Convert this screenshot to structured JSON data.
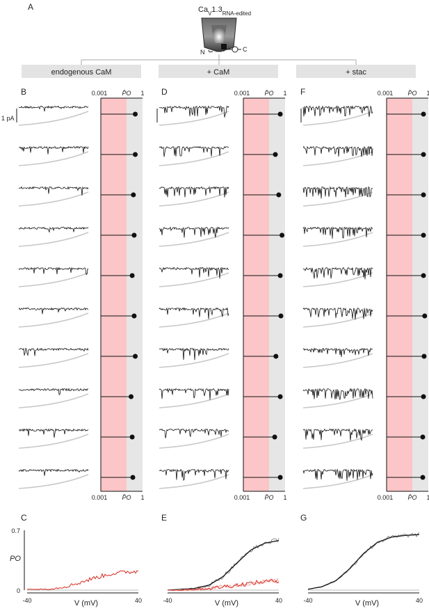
{
  "figure": {
    "panel_letters": {
      "A": "A",
      "B": "B",
      "C": "C",
      "D": "D",
      "E": "E",
      "F": "F",
      "G": "G"
    },
    "channel_title": "CaV1.3",
    "channel_title_base": "Ca",
    "channel_title_sub_v": "V",
    "channel_title_rest": "1.3",
    "channel_title_subscript": "RNA-edited",
    "schematic_labels": {
      "n_term": "N",
      "c_term": "C"
    },
    "conditions": [
      "endogenous CaM",
      "+ CaM",
      "+ stac"
    ],
    "scale_bar_label": "1 pA",
    "colors": {
      "red_band": "#fcc5c7",
      "gray_band": "#e6e6e6",
      "red_trace": "#d62a1f",
      "pink_trace": "#f1a39f",
      "gray_trace": "#8c8c8c",
      "fit_line": "#111111",
      "header_bar": "#e3e3e3"
    }
  },
  "chart_data": [
    {
      "type": "scatter",
      "panel": "B",
      "condition": "endogenous CaM",
      "title": "",
      "xlabel": "P̄O",
      "x_scale": "log",
      "xlim": [
        0.001,
        1
      ],
      "x_ticks": [
        "0.001",
        "1"
      ],
      "n_sweeps": 10,
      "values": [
        0.3,
        0.3,
        0.22,
        0.25,
        0.18,
        0.25,
        0.3,
        0.15,
        0.18,
        0.2
      ]
    },
    {
      "type": "scatter",
      "panel": "D",
      "condition": "+ CaM",
      "title": "",
      "xlabel": "P̄O",
      "x_scale": "log",
      "xlim": [
        0.001,
        1
      ],
      "x_ticks": [
        "0.001",
        "1"
      ],
      "n_sweeps": 10,
      "values": [
        0.45,
        0.2,
        0.35,
        0.6,
        0.45,
        0.5,
        0.22,
        0.45,
        0.18,
        0.45
      ]
    },
    {
      "type": "scatter",
      "panel": "F",
      "condition": "+ stac",
      "title": "",
      "xlabel": "P̄O",
      "x_scale": "log",
      "xlim": [
        0.001,
        1
      ],
      "x_ticks": [
        "0.001",
        "1"
      ],
      "n_sweeps": 10,
      "values": [
        0.45,
        0.45,
        0.45,
        0.45,
        0.45,
        0.55,
        0.5,
        0.45,
        0.4,
        0.4
      ]
    },
    {
      "type": "line",
      "panel": "C",
      "xlabel": "V (mV)",
      "ylabel": "PO",
      "xlim": [
        -40,
        40
      ],
      "ylim": [
        0,
        0.7
      ],
      "x_ticks": [
        "-40",
        "40"
      ],
      "y_ticks": [
        "0",
        "0.7"
      ],
      "series": [
        {
          "color": "red",
          "x": [
            -40,
            -30,
            -20,
            -10,
            0,
            10,
            20,
            30,
            40
          ],
          "values": [
            0.01,
            0.01,
            0.02,
            0.05,
            0.1,
            0.15,
            0.19,
            0.21,
            0.22
          ]
        }
      ]
    },
    {
      "type": "line",
      "panel": "E",
      "xlabel": "V (mV)",
      "ylabel": "",
      "xlim": [
        -40,
        40
      ],
      "ylim": [
        0,
        0.7
      ],
      "x_ticks": [
        "-40",
        "40"
      ],
      "series": [
        {
          "color": "gray",
          "x": [
            -40,
            -30,
            -20,
            -10,
            0,
            10,
            20,
            30,
            40
          ],
          "values": [
            0.0,
            0.01,
            0.02,
            0.06,
            0.16,
            0.32,
            0.47,
            0.55,
            0.59
          ]
        },
        {
          "color": "fit",
          "x": [
            -40,
            -30,
            -20,
            -10,
            0,
            10,
            20,
            30,
            40
          ],
          "values": [
            0.0,
            0.01,
            0.02,
            0.06,
            0.16,
            0.32,
            0.47,
            0.55,
            0.58
          ]
        },
        {
          "color": "pink",
          "x": [
            -40,
            -30,
            -20,
            -10,
            0,
            10,
            20,
            30,
            40
          ],
          "values": [
            0.0,
            0.0,
            0.01,
            0.02,
            0.04,
            0.06,
            0.08,
            0.1,
            0.11
          ]
        },
        {
          "color": "red",
          "x": [
            -40,
            -30,
            -20,
            -10,
            0,
            10,
            20,
            30,
            40
          ],
          "values": [
            0.0,
            0.0,
            0.01,
            0.02,
            0.04,
            0.06,
            0.08,
            0.1,
            0.11
          ]
        }
      ]
    },
    {
      "type": "line",
      "panel": "G",
      "xlabel": "V (mV)",
      "ylabel": "",
      "xlim": [
        -40,
        40
      ],
      "ylim": [
        0,
        0.7
      ],
      "x_ticks": [
        "-40",
        "40"
      ],
      "series": [
        {
          "color": "gray",
          "x": [
            -40,
            -30,
            -20,
            -10,
            0,
            10,
            20,
            30,
            40
          ],
          "values": [
            0.01,
            0.04,
            0.11,
            0.25,
            0.43,
            0.56,
            0.62,
            0.64,
            0.65
          ]
        },
        {
          "color": "fit",
          "x": [
            -40,
            -30,
            -20,
            -10,
            0,
            10,
            20,
            30,
            40
          ],
          "values": [
            0.01,
            0.04,
            0.11,
            0.25,
            0.43,
            0.56,
            0.62,
            0.64,
            0.65
          ]
        }
      ]
    }
  ]
}
